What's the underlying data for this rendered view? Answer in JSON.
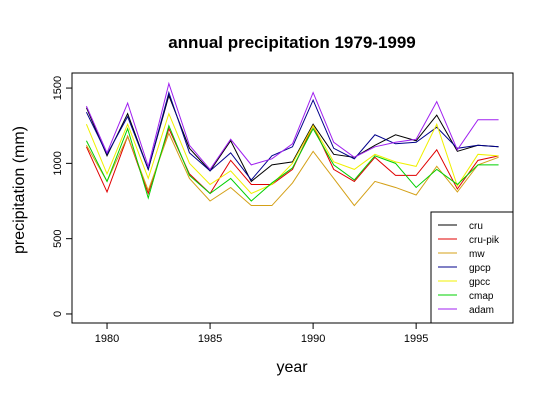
{
  "chart_data": {
    "type": "line",
    "title": "annual precipitation 1979-1999",
    "xlabel": "year",
    "ylabel": "precipitation (mm)",
    "xlim": [
      1978.3,
      1999.7
    ],
    "ylim": [
      -60,
      1600
    ],
    "xticks": [
      1980,
      1985,
      1990,
      1995
    ],
    "yticks": [
      0,
      500,
      1000,
      1500
    ],
    "grid": false,
    "legend_position": "bottom-right",
    "x": [
      1979,
      1980,
      1981,
      1982,
      1983,
      1984,
      1985,
      1986,
      1987,
      1988,
      1989,
      1990,
      1991,
      1992,
      1993,
      1994,
      1995,
      1996,
      1997,
      1998,
      1999
    ],
    "series": [
      {
        "name": "cru",
        "color": "#000000",
        "values": [
          1370,
          1050,
          1330,
          960,
          1450,
          1100,
          950,
          1150,
          880,
          990,
          1010,
          1260,
          1060,
          1040,
          1120,
          1190,
          1150,
          1320,
          1080,
          1120,
          1110
        ]
      },
      {
        "name": "cru-pik",
        "color": "#e00000",
        "values": [
          1110,
          810,
          1180,
          800,
          1230,
          930,
          800,
          1020,
          860,
          860,
          960,
          1250,
          960,
          880,
          1040,
          920,
          920,
          1090,
          830,
          1020,
          1050
        ]
      },
      {
        "name": "mw",
        "color": "#d4a017",
        "values": [
          1120,
          880,
          1180,
          820,
          1200,
          900,
          750,
          840,
          720,
          720,
          870,
          1080,
          900,
          720,
          880,
          840,
          790,
          980,
          810,
          990,
          1040
        ]
      },
      {
        "name": "gpcp",
        "color": "#00008b",
        "values": [
          1340,
          1060,
          1310,
          960,
          1470,
          1070,
          950,
          1070,
          890,
          1050,
          1110,
          1420,
          1100,
          1030,
          1190,
          1130,
          1140,
          1240,
          1100,
          1120,
          1110
        ]
      },
      {
        "name": "gpcc",
        "color": "#f0f000",
        "values": [
          1260,
          930,
          1260,
          900,
          1330,
          1000,
          860,
          950,
          800,
          860,
          1000,
          1250,
          1010,
          960,
          1060,
          1010,
          980,
          1260,
          850,
          1060,
          1050
        ]
      },
      {
        "name": "cmap",
        "color": "#00d000",
        "values": [
          1150,
          880,
          1230,
          770,
          1250,
          920,
          800,
          900,
          750,
          870,
          970,
          1230,
          990,
          890,
          1050,
          1000,
          840,
          960,
          860,
          990,
          990
        ]
      },
      {
        "name": "adam",
        "color": "#a020f0",
        "values": [
          1380,
          1070,
          1400,
          980,
          1530,
          1120,
          960,
          1160,
          990,
          1030,
          1130,
          1470,
          1140,
          1040,
          1110,
          1140,
          1160,
          1410,
          1090,
          1290,
          1290
        ]
      }
    ]
  }
}
